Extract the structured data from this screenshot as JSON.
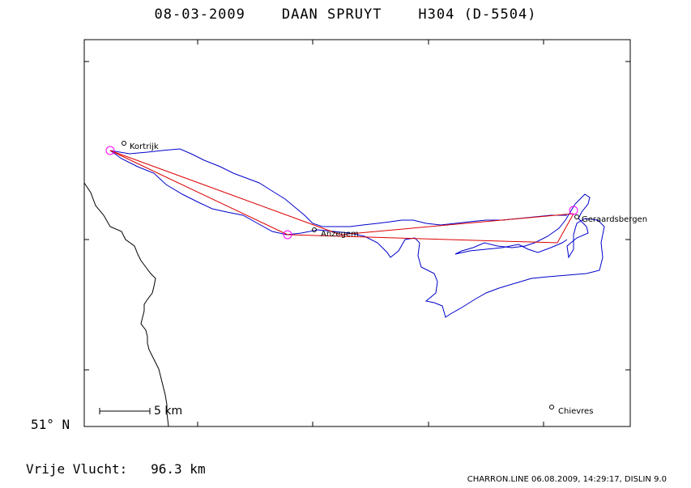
{
  "header": {
    "date": "08-03-2009",
    "pilot": "DAAN SPRUYT",
    "glider": "H304 (D-5504)"
  },
  "places": [
    {
      "name": "Kortrijk"
    },
    {
      "name": "Anzegem"
    },
    {
      "name": "Geraardsbergen"
    },
    {
      "name": "Chievres"
    }
  ],
  "axis": {
    "lat_label": "51° N"
  },
  "scale": {
    "label": "5 km"
  },
  "summary": {
    "label": "Vrije Vlucht:",
    "distance": "96.3 km"
  },
  "footer": {
    "text": "CHARRON.LINE 06.08.2009, 14:29:17, DISLIN 9.0"
  },
  "colors": {
    "track": "#0000cc",
    "task": "#dd0000",
    "turnpoint": "#ff00ff",
    "border": "#000000"
  }
}
